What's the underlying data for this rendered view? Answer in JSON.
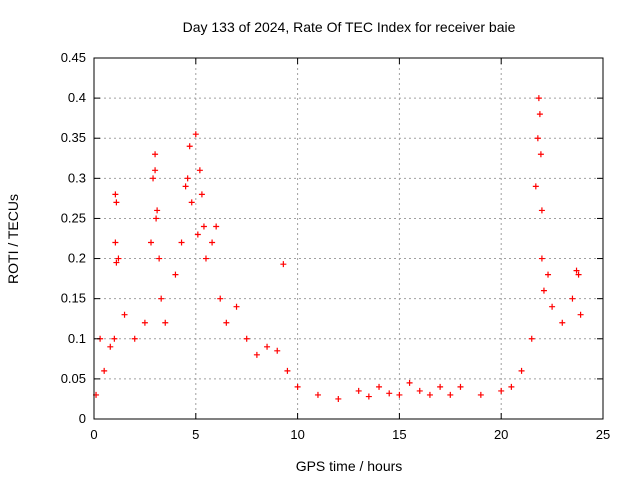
{
  "chart_data": {
    "type": "scatter",
    "title": "Day 133 of 2024, Rate Of TEC Index for receiver baie",
    "xlabel": "GPS time / hours",
    "ylabel": "ROTI / TECUs",
    "xlim": [
      0,
      25
    ],
    "ylim": [
      0,
      0.45
    ],
    "xticks": [
      "0",
      "5",
      "10",
      "15",
      "20",
      "25"
    ],
    "yticks": [
      "0",
      "0.05",
      "0.1",
      "0.15",
      "0.2",
      "0.25",
      "0.3",
      "0.35",
      "0.4",
      "0.45"
    ],
    "grid": true,
    "marker": "+",
    "color": "#ff0000",
    "series": [
      {
        "x": [
          0.1,
          0.3,
          0.5,
          0.8,
          1.0,
          1.05,
          1.1,
          1.2,
          1.05,
          1.1,
          1.5,
          2.0,
          2.5,
          2.8,
          2.9,
          3.0,
          3.0,
          3.05,
          3.1,
          3.2,
          3.3,
          3.5,
          4.0,
          4.3,
          4.5,
          4.6,
          4.7,
          4.8,
          5.0,
          5.1,
          5.2,
          5.3,
          5.4,
          5.5,
          5.8,
          6.0,
          6.2,
          6.5,
          7.0,
          7.5,
          8.0,
          8.5,
          9.0,
          9.3,
          9.5,
          10.0,
          11.0,
          12.0,
          13.0,
          13.5,
          14.0,
          14.5,
          15.0,
          15.5,
          16.0,
          16.5,
          17.0,
          17.5,
          18.0,
          19.0,
          20.0,
          20.5,
          21.0,
          21.5,
          21.7,
          21.8,
          21.85,
          21.9,
          21.95,
          22.0,
          22.0,
          22.1,
          22.3,
          22.5,
          23.0,
          23.5,
          23.7,
          23.8,
          23.9
        ],
        "y": [
          0.03,
          0.1,
          0.06,
          0.09,
          0.1,
          0.28,
          0.27,
          0.2,
          0.22,
          0.195,
          0.13,
          0.1,
          0.12,
          0.22,
          0.3,
          0.33,
          0.31,
          0.25,
          0.26,
          0.2,
          0.15,
          0.12,
          0.18,
          0.22,
          0.29,
          0.3,
          0.34,
          0.27,
          0.355,
          0.23,
          0.31,
          0.28,
          0.24,
          0.2,
          0.22,
          0.24,
          0.15,
          0.12,
          0.14,
          0.1,
          0.08,
          0.09,
          0.085,
          0.193,
          0.06,
          0.04,
          0.03,
          0.025,
          0.035,
          0.028,
          0.04,
          0.032,
          0.03,
          0.045,
          0.035,
          0.03,
          0.04,
          0.03,
          0.04,
          0.03,
          0.035,
          0.04,
          0.06,
          0.1,
          0.29,
          0.35,
          0.4,
          0.38,
          0.33,
          0.26,
          0.2,
          0.16,
          0.18,
          0.14,
          0.12,
          0.15,
          0.185,
          0.18,
          0.13
        ]
      }
    ]
  }
}
